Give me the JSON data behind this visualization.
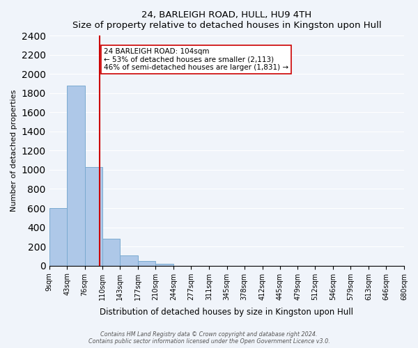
{
  "title": "24, BARLEIGH ROAD, HULL, HU9 4TH",
  "subtitle": "Size of property relative to detached houses in Kingston upon Hull",
  "xlabel": "Distribution of detached houses by size in Kingston upon Hull",
  "ylabel": "Number of detached properties",
  "bin_labels": [
    "9sqm",
    "43sqm",
    "76sqm",
    "110sqm",
    "143sqm",
    "177sqm",
    "210sqm",
    "244sqm",
    "277sqm",
    "311sqm",
    "345sqm",
    "378sqm",
    "412sqm",
    "445sqm",
    "479sqm",
    "512sqm",
    "546sqm",
    "579sqm",
    "613sqm",
    "646sqm",
    "680sqm"
  ],
  "bin_edges": [
    9,
    43,
    76,
    110,
    143,
    177,
    210,
    244,
    277,
    311,
    345,
    378,
    412,
    445,
    479,
    512,
    546,
    579,
    613,
    646,
    680
  ],
  "bar_heights": [
    600,
    1880,
    1030,
    280,
    110,
    45,
    20,
    0,
    0,
    0,
    0,
    0,
    0,
    0,
    0,
    0,
    0,
    0,
    0,
    0
  ],
  "bar_color": "#aec8e8",
  "bar_edge_color": "#7aaad0",
  "property_line_x": 104,
  "property_line_color": "#cc0000",
  "annotation_text": "24 BARLEIGH ROAD: 104sqm\n← 53% of detached houses are smaller (2,113)\n46% of semi-detached houses are larger (1,831) →",
  "annotation_box_color": "#ffffff",
  "annotation_box_edge_color": "#cc0000",
  "ylim": [
    0,
    2400
  ],
  "yticks": [
    0,
    200,
    400,
    600,
    800,
    1000,
    1200,
    1400,
    1600,
    1800,
    2000,
    2200,
    2400
  ],
  "footer_line1": "Contains HM Land Registry data © Crown copyright and database right 2024.",
  "footer_line2": "Contains public sector information licensed under the Open Government Licence v3.0.",
  "bg_color": "#f0f4fa",
  "plot_bg_color": "#f0f4fa"
}
